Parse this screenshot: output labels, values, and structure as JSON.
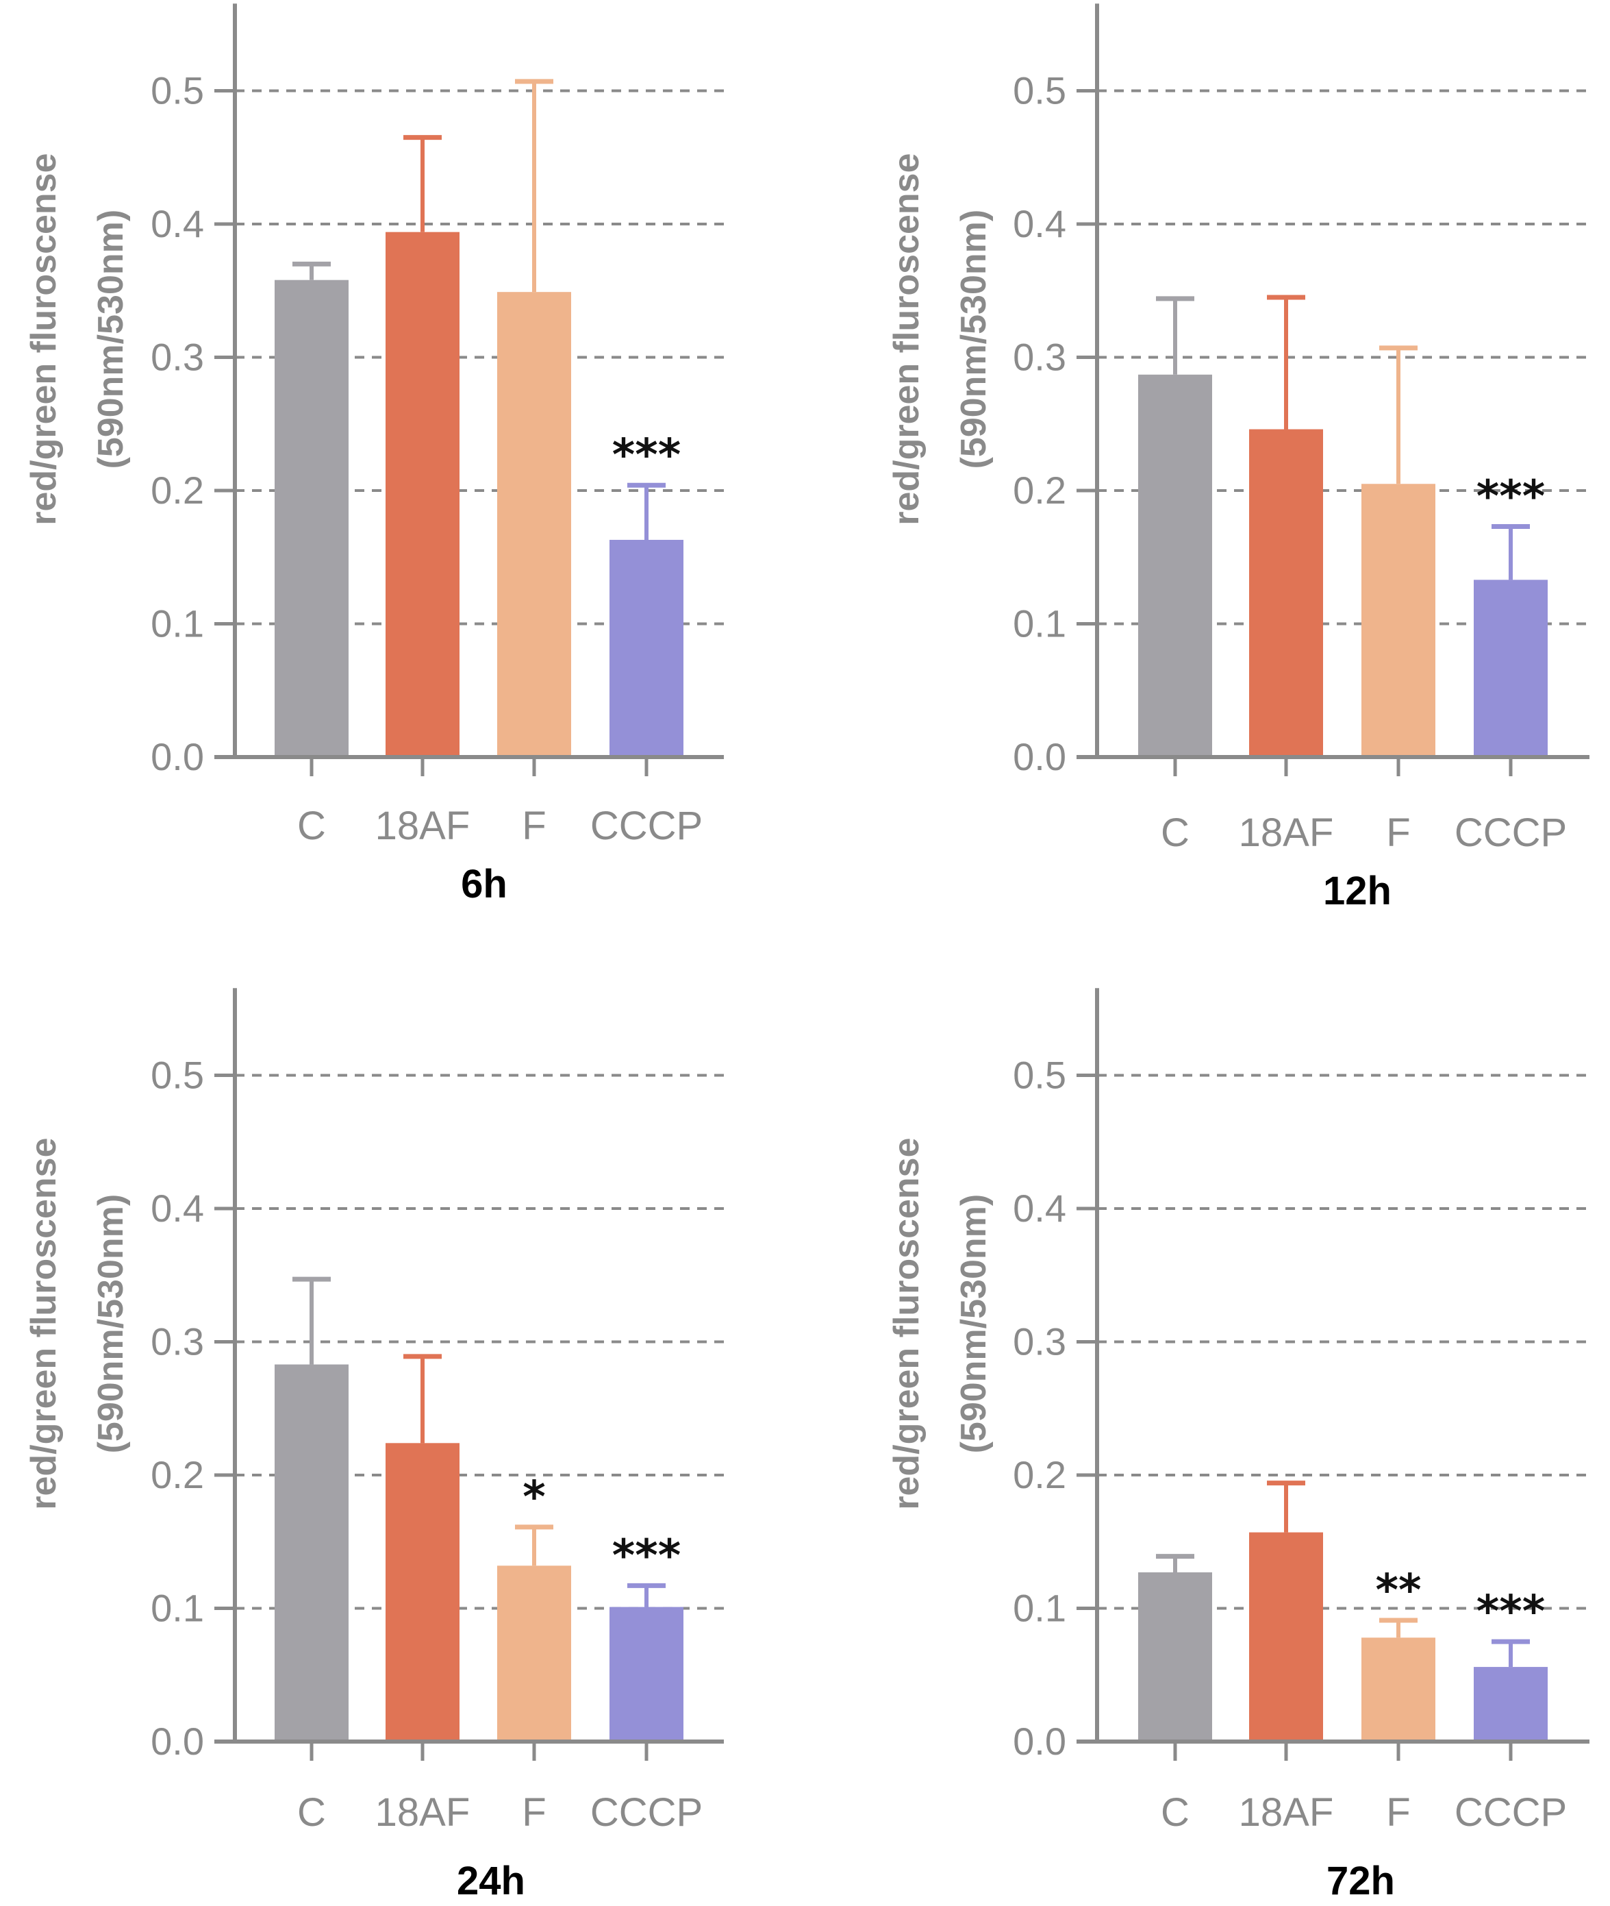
{
  "colors": {
    "axis": "#8a8a8a",
    "grid": "#8a8a8a",
    "C": "#a3a2a7",
    "18AF": "#e07455",
    "F": "#efb48c",
    "CCCP": "#9490d7"
  },
  "chart_data": [
    {
      "type": "bar",
      "title": "6h",
      "categories": [
        "C",
        "18AF",
        "F",
        "CCCP"
      ],
      "values": [
        0.358,
        0.394,
        0.349,
        0.163
      ],
      "errors": [
        0.012,
        0.071,
        0.158,
        0.041
      ],
      "significance": [
        "",
        "",
        "",
        "***"
      ],
      "ylabel_line1": "red/green fluroscense",
      "ylabel_line2": "(590nm/530nm)",
      "xlabel": "",
      "ylim": [
        0,
        0.55
      ],
      "yticks": [
        "0.0",
        "0.1",
        "0.2",
        "0.3",
        "0.4",
        "0.5"
      ],
      "grid": true
    },
    {
      "type": "bar",
      "title": "12h",
      "categories": [
        "C",
        "18AF",
        "F",
        "CCCP"
      ],
      "values": [
        0.287,
        0.246,
        0.205,
        0.133
      ],
      "errors": [
        0.057,
        0.099,
        0.102,
        0.04
      ],
      "significance": [
        "",
        "",
        "",
        "***"
      ],
      "ylabel_line1": "red/green fluroscense",
      "ylabel_line2": "(590nm/530nm)",
      "xlabel": "",
      "ylim": [
        0,
        0.55
      ],
      "yticks": [
        "0.0",
        "0.1",
        "0.2",
        "0.3",
        "0.4",
        "0.5"
      ],
      "grid": true
    },
    {
      "type": "bar",
      "title": "24h",
      "categories": [
        "C",
        "18AF",
        "F",
        "CCCP"
      ],
      "values": [
        0.283,
        0.224,
        0.132,
        0.101
      ],
      "errors": [
        0.064,
        0.065,
        0.029,
        0.016
      ],
      "significance": [
        "",
        "",
        "*",
        "***"
      ],
      "ylabel_line1": "red/green fluroscense",
      "ylabel_line2": "(590nm/530nm)",
      "xlabel": "",
      "ylim": [
        0,
        0.55
      ],
      "yticks": [
        "0.0",
        "0.1",
        "0.2",
        "0.3",
        "0.4",
        "0.5"
      ],
      "grid": true
    },
    {
      "type": "bar",
      "title": "72h",
      "categories": [
        "C",
        "18AF",
        "F",
        "CCCP"
      ],
      "values": [
        0.127,
        0.157,
        0.078,
        0.056
      ],
      "errors": [
        0.012,
        0.037,
        0.013,
        0.019
      ],
      "significance": [
        "",
        "",
        "**",
        "***"
      ],
      "ylabel_line1": "red/green fluroscense",
      "ylabel_line2": "(590nm/530nm)",
      "xlabel": "",
      "ylim": [
        0,
        0.55
      ],
      "yticks": [
        "0.0",
        "0.1",
        "0.2",
        "0.3",
        "0.4",
        "0.5"
      ],
      "grid": true
    }
  ]
}
